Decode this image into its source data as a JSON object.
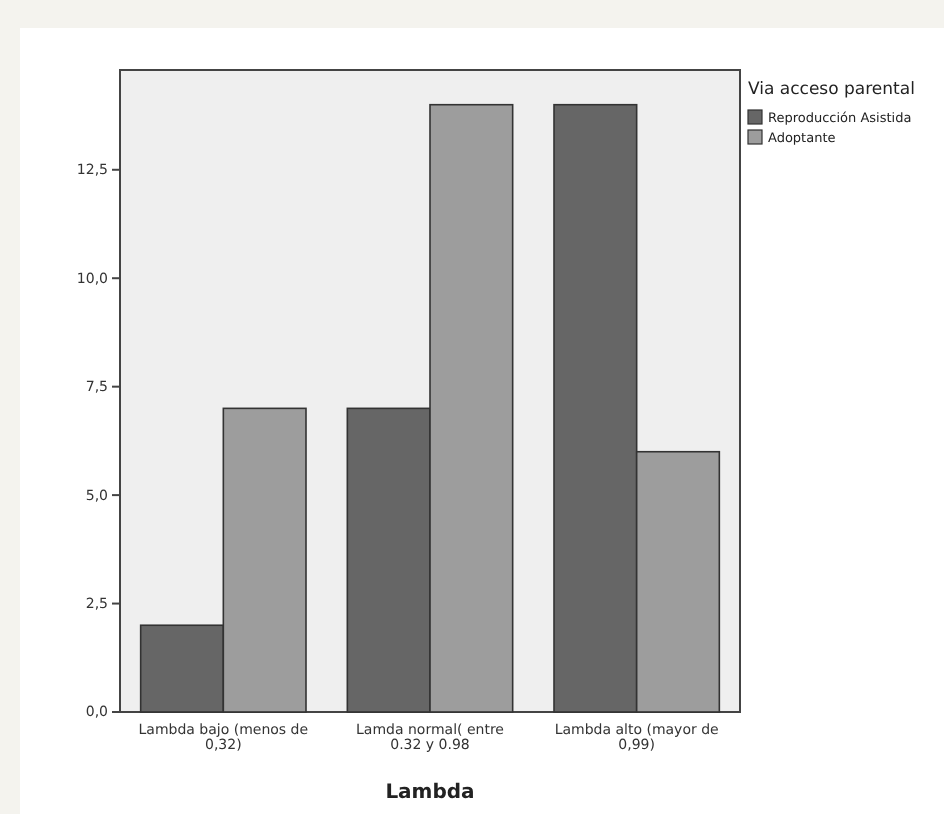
{
  "chart_data": {
    "type": "bar",
    "xlabel": "Lambda",
    "legend_title": "Via acceso parental",
    "legend": "top right",
    "categories": [
      "Lambda bajo (menos de 0,32)",
      "Lamda normal( entre 0.32 y 0.98",
      "Lambda alto (mayor de 0,99)"
    ],
    "series": [
      {
        "name": "Reproducción Asistida",
        "color": "#666666",
        "values": [
          2,
          7,
          14
        ]
      },
      {
        "name": "Adoptante",
        "color": "#9d9d9d",
        "values": [
          7,
          14,
          6
        ]
      }
    ],
    "ylim": [
      0,
      14.8
    ],
    "yticks": [
      {
        "value": 0,
        "label": "0,0"
      },
      {
        "value": 2.5,
        "label": "2,5"
      },
      {
        "value": 5,
        "label": "5,0"
      },
      {
        "value": 7.5,
        "label": "7,5"
      },
      {
        "value": 10,
        "label": "10,0"
      },
      {
        "value": 12.5,
        "label": "12,5"
      }
    ],
    "grid": false
  }
}
